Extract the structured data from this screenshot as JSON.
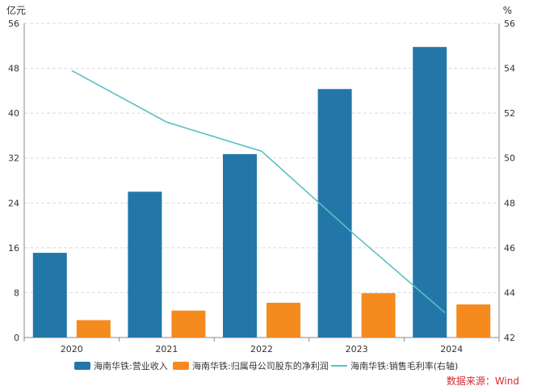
{
  "chart_data": {
    "type": "bar",
    "categories": [
      "2020",
      "2021",
      "2022",
      "2023",
      "2024"
    ],
    "series": [
      {
        "name": "海南华铁:营业收入",
        "kind": "bar",
        "axis": "left",
        "color": "#2277a8",
        "values": [
          15.1,
          26.0,
          32.7,
          44.3,
          51.8
        ]
      },
      {
        "name": "海南华铁:归属母公司股东的净利润",
        "kind": "bar",
        "axis": "left",
        "color": "#f58a1f",
        "values": [
          3.1,
          4.8,
          6.2,
          7.9,
          5.9
        ]
      },
      {
        "name": "海南华铁:销售毛利率(右轴)",
        "kind": "line",
        "axis": "right",
        "color": "#5bbfc5",
        "values": [
          53.9,
          51.6,
          50.3,
          46.5,
          43.1
        ]
      }
    ],
    "y_left": {
      "unit": "亿元",
      "min": 0,
      "max": 56,
      "ticks": [
        0,
        8,
        16,
        24,
        32,
        40,
        48,
        56
      ]
    },
    "y_right": {
      "unit": "%",
      "min": 42,
      "max": 56,
      "ticks": [
        42,
        44,
        46,
        48,
        50,
        52,
        54,
        56
      ]
    },
    "grid": true,
    "legend_position": "bottom"
  },
  "source_label": "数据来源：Wind"
}
